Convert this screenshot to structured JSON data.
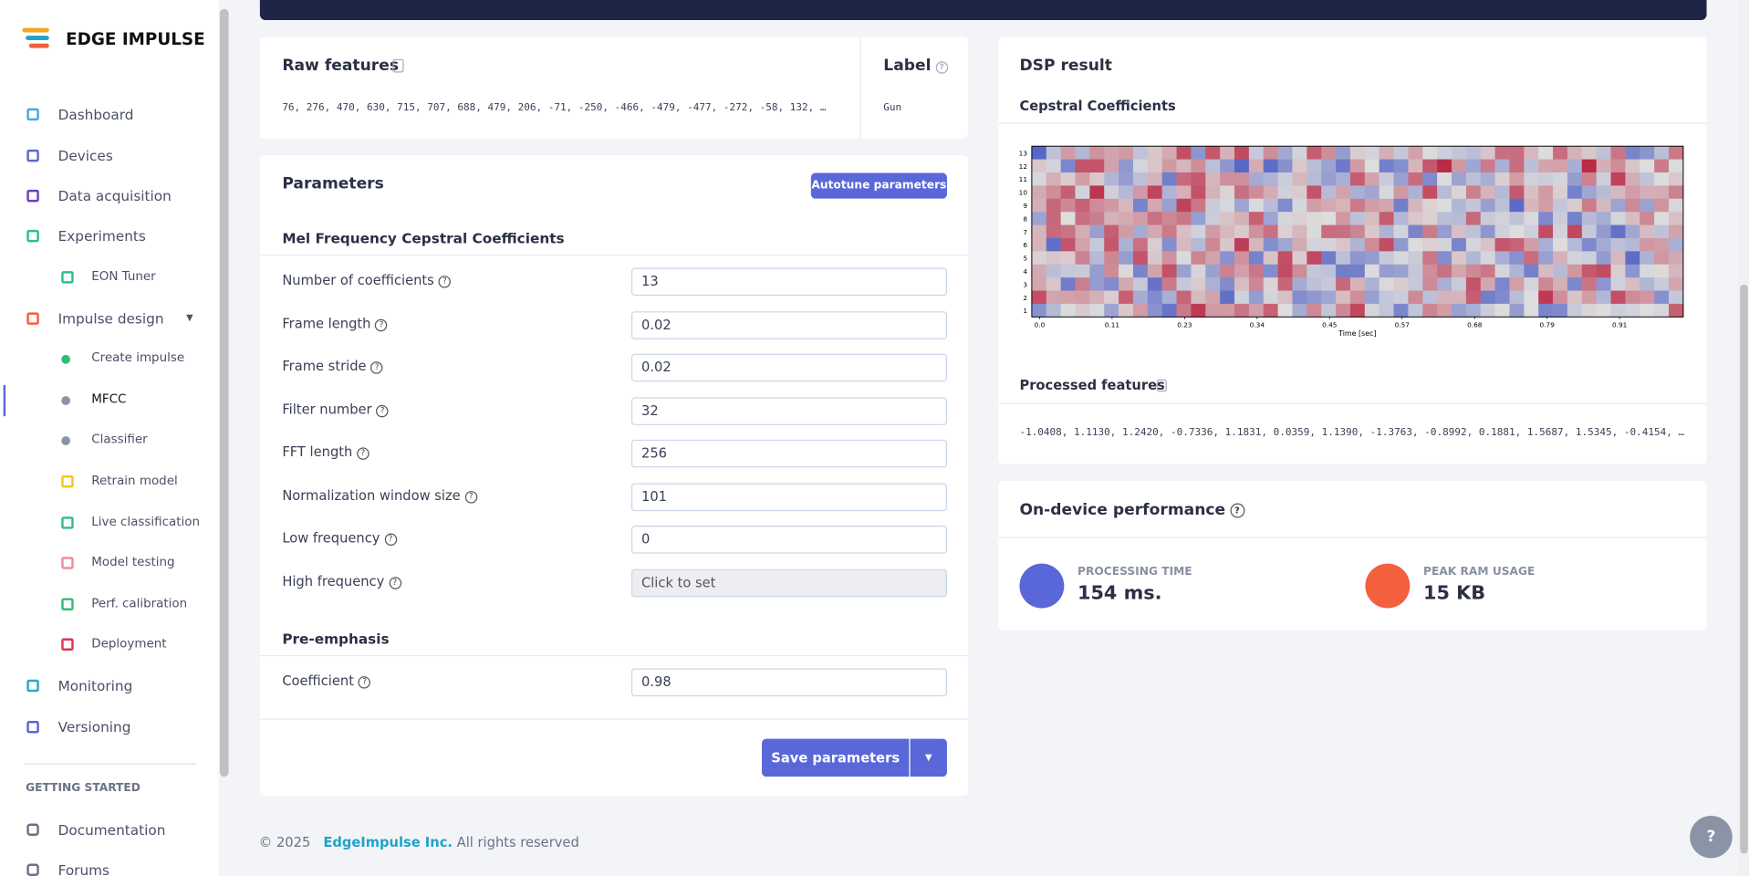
{
  "sidebar": {
    "brand": "EDGE IMPULSE",
    "nav": [
      {
        "label": "Dashboard",
        "level": 0,
        "color": "#4aa8e0"
      },
      {
        "label": "Devices",
        "level": 0,
        "color": "#5a67d8"
      },
      {
        "label": "Data acquisition",
        "level": 0,
        "color": "#6b3fc7"
      },
      {
        "label": "Experiments",
        "level": 0,
        "color": "#2fbf8a"
      },
      {
        "label": "EON Tuner",
        "level": 1,
        "color": "#2fbf8a"
      },
      {
        "label": "Impulse design",
        "level": 0,
        "color": "#f2603d"
      },
      {
        "label": "Create impulse",
        "level": 1,
        "color": "#2fbf71"
      },
      {
        "label": "MFCC",
        "level": 1,
        "color": "#8a94a6",
        "active": true
      },
      {
        "label": "Classifier",
        "level": 1,
        "color": "#8a94a6"
      },
      {
        "label": "Retrain model",
        "level": 1,
        "color": "#f5c518"
      },
      {
        "label": "Live classification",
        "level": 1,
        "color": "#2fbf8a"
      },
      {
        "label": "Model testing",
        "level": 1,
        "color": "#f28a9a"
      },
      {
        "label": "Perf. calibration",
        "level": 1,
        "color": "#2fbf71"
      },
      {
        "label": "Deployment",
        "level": 1,
        "color": "#e0334f"
      },
      {
        "label": "Monitoring",
        "level": 0,
        "color": "#2aa8c9"
      },
      {
        "label": "Versioning",
        "level": 0,
        "color": "#5a67d8"
      }
    ],
    "section": "GETTING STARTED",
    "extra": [
      "Documentation",
      "Forums"
    ]
  },
  "raw": {
    "title": "Raw features",
    "values": "76, 276, 470, 630, 715, 707, 688, 479, 206, -71, -250, -466, -479, -477, -272, -58, 132, …",
    "label_title": "Label",
    "label": "Gun"
  },
  "parameters": {
    "title": "Parameters",
    "autotune": "Autotune parameters",
    "groups": [
      {
        "title": "Mel Frequency Cepstral Coefficients",
        "fields": [
          {
            "label": "Number of coefficients",
            "value": "13"
          },
          {
            "label": "Frame length",
            "value": "0.02"
          },
          {
            "label": "Frame stride",
            "value": "0.02"
          },
          {
            "label": "Filter number",
            "value": "32"
          },
          {
            "label": "FFT length",
            "value": "256"
          },
          {
            "label": "Normalization window size",
            "value": "101"
          },
          {
            "label": "Low frequency",
            "value": "0"
          },
          {
            "label": "High frequency",
            "value": "Click to set",
            "disabled": true
          }
        ]
      },
      {
        "title": "Pre-emphasis",
        "fields": [
          {
            "label": "Coefficient",
            "value": "0.98"
          }
        ]
      }
    ],
    "save": "Save parameters"
  },
  "dsp": {
    "title": "DSP result",
    "subtitle": "Cepstral Coefficients",
    "yticks": [
      "1",
      "2",
      "3",
      "4",
      "5",
      "6",
      "7",
      "8",
      "9",
      "10",
      "11",
      "12",
      "13"
    ],
    "xticks": [
      "0.0",
      "0.11",
      "0.23",
      "0.34",
      "0.45",
      "0.57",
      "0.68",
      "0.79",
      "0.91"
    ],
    "xlabel": "Time [sec]",
    "processed_title": "Processed features",
    "processed": "-1.0408, 1.1130, 1.2420, -0.7336, 1.1831, 0.0359, 1.1390, -1.3763, -0.8992, 0.1881, 1.5687, 1.5345, -0.4154, …"
  },
  "performance": {
    "title": "On-device performance",
    "items": [
      {
        "label": "PROCESSING TIME",
        "value": "154 ms.",
        "color": "#5a67d8"
      },
      {
        "label": "PEAK RAM USAGE",
        "value": "15 KB",
        "color": "#f2603d"
      }
    ]
  },
  "footer": {
    "copy": "© 2025",
    "company": "EdgeImpulse Inc.",
    "rights": "All rights reserved"
  }
}
